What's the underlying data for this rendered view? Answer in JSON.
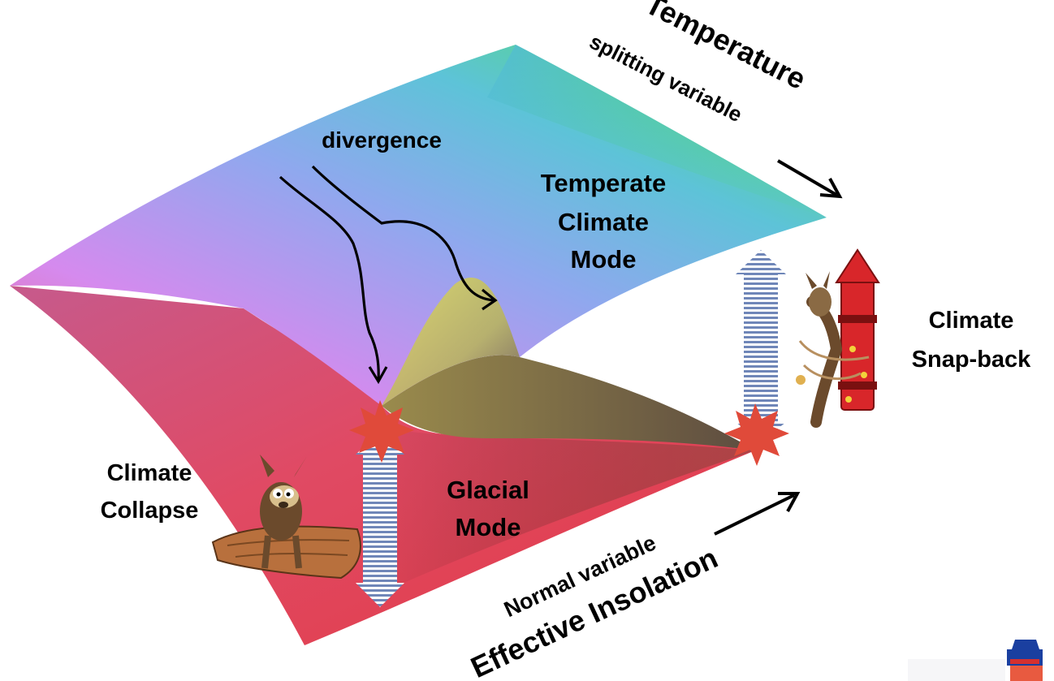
{
  "labels": {
    "divergence": "divergence",
    "temperate_line1": "Temperate",
    "temperate_line2": "Climate",
    "temperate_line3": "Mode",
    "glacial_line1": "Glacial",
    "glacial_line2": "Mode",
    "collapse_line1": "Climate",
    "collapse_line2": "Collapse",
    "snapback_line1": "Climate",
    "snapback_line2": "Snap-back",
    "temperature": "Temperature",
    "splitting_variable": "splitting variable",
    "normal_variable": "Normal variable",
    "effective_insolation": "Effective Insolation"
  },
  "colors": {
    "surface_top_left": "#e27ef0",
    "surface_top": "#4fb3e8",
    "surface_right": "#4ee04a",
    "surface_bottom": "#e8435a",
    "fold_yellow": "#d9d84a",
    "fold_shadow": "#6f5a4a",
    "burst": "#e04a3a",
    "transition_arrow": "#6f86b8",
    "axis_arrow": "#000000"
  },
  "icons": {
    "collapse_character": "coyote-on-log-icon",
    "snapback_character": "coyote-on-rocket-icon",
    "corner_logo": "blue-hat-logo-icon"
  }
}
